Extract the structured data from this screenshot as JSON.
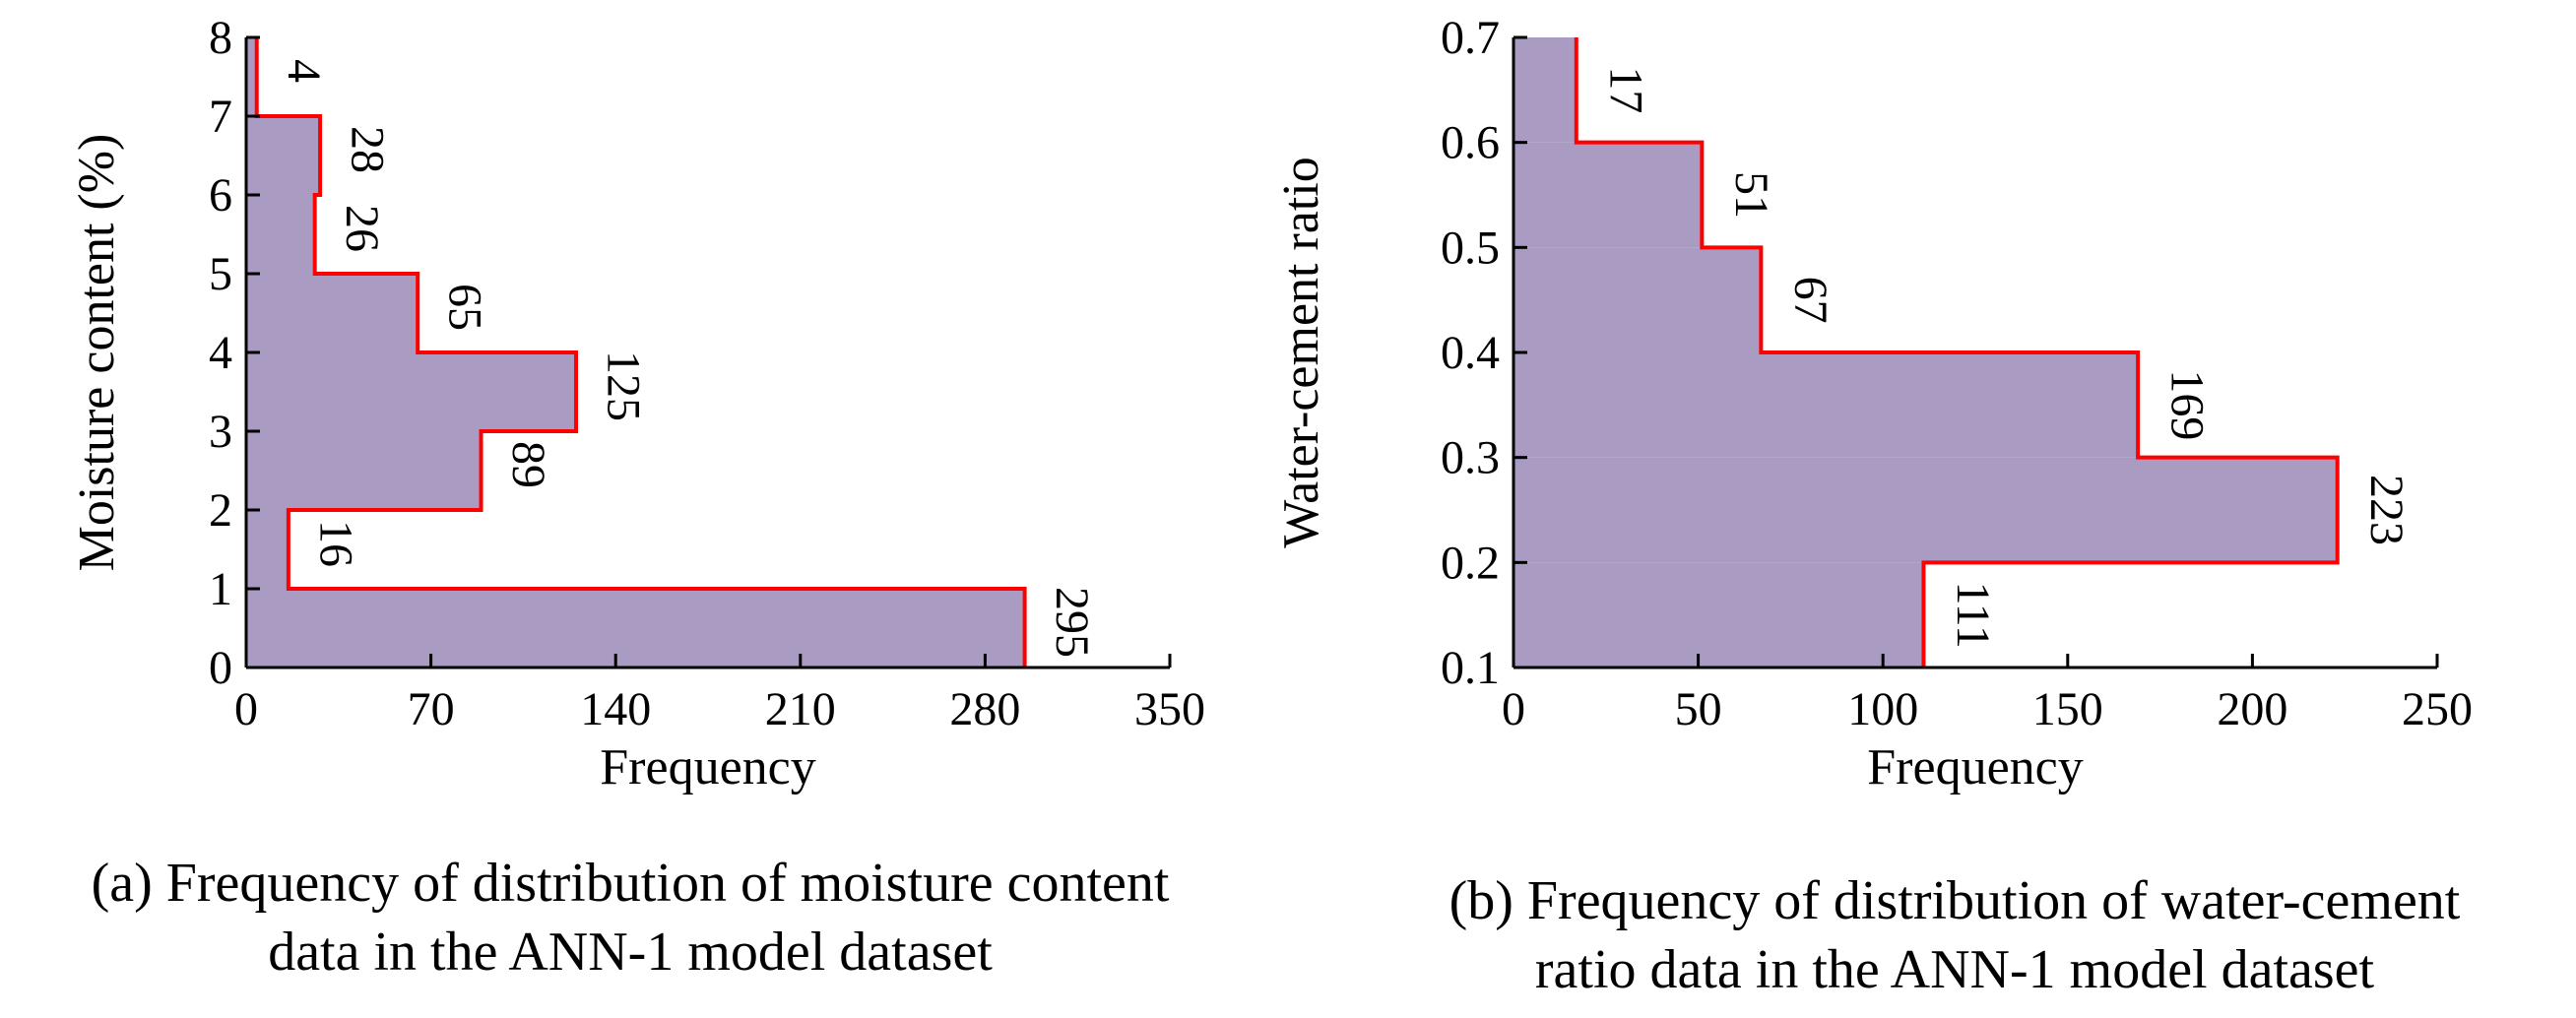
{
  "chart_data": [
    {
      "id": "a",
      "type": "bar",
      "orientation": "horizontal-step-histogram",
      "caption": "(a) Frequency of distribution of moisture content data in the ANN-1 model dataset",
      "caption_lines": [
        "(a) Frequency of distribution of moisture content",
        "data in the ANN-1 model dataset"
      ],
      "xlabel": "Frequency",
      "ylabel": "Moisture content (%)",
      "xlim": [
        0,
        350
      ],
      "ylim": [
        0,
        8
      ],
      "xticks": [
        "0",
        "70",
        "140",
        "210",
        "280",
        "350"
      ],
      "yticks": [
        "0",
        "1",
        "2",
        "3",
        "4",
        "5",
        "6",
        "7",
        "8"
      ],
      "bins": [
        {
          "range": [
            0,
            1
          ],
          "value": 295,
          "label": "295"
        },
        {
          "range": [
            1,
            2
          ],
          "value": 16,
          "label": "16"
        },
        {
          "range": [
            2,
            3
          ],
          "value": 89,
          "label": "89"
        },
        {
          "range": [
            3,
            4
          ],
          "value": 125,
          "label": "125"
        },
        {
          "range": [
            4,
            5
          ],
          "value": 65,
          "label": "65"
        },
        {
          "range": [
            5,
            6
          ],
          "value": 26,
          "label": "26"
        },
        {
          "range": [
            6,
            7
          ],
          "value": 28,
          "label": "28"
        },
        {
          "range": [
            7,
            8
          ],
          "value": 4,
          "label": "4"
        }
      ],
      "fill_color": "#aa9bc3",
      "outline_color": "#ff0000",
      "grid": false
    },
    {
      "id": "b",
      "type": "bar",
      "orientation": "horizontal-step-histogram",
      "caption": "(b) Frequency of distribution of water-cement ratio data in the ANN-1 model dataset",
      "caption_lines": [
        "(b) Frequency of distribution of water-cement",
        "ratio data in the ANN-1 model dataset"
      ],
      "xlabel": "Frequency",
      "ylabel": "Water-cement ratio",
      "xlim": [
        0,
        250
      ],
      "ylim": [
        0.1,
        0.7
      ],
      "xticks": [
        "0",
        "50",
        "100",
        "150",
        "200",
        "250"
      ],
      "yticks": [
        "0.1",
        "0.2",
        "0.3",
        "0.4",
        "0.5",
        "0.6",
        "0.7"
      ],
      "bins": [
        {
          "range": [
            0.1,
            0.2
          ],
          "value": 111,
          "label": "111"
        },
        {
          "range": [
            0.2,
            0.3
          ],
          "value": 223,
          "label": "223"
        },
        {
          "range": [
            0.3,
            0.4
          ],
          "value": 169,
          "label": "169"
        },
        {
          "range": [
            0.4,
            0.5
          ],
          "value": 67,
          "label": "67"
        },
        {
          "range": [
            0.5,
            0.6
          ],
          "value": 51,
          "label": "51"
        },
        {
          "range": [
            0.6,
            0.7
          ],
          "value": 17,
          "label": "17"
        }
      ],
      "fill_color": "#aa9bc3",
      "outline_color": "#ff0000",
      "grid": false
    }
  ]
}
